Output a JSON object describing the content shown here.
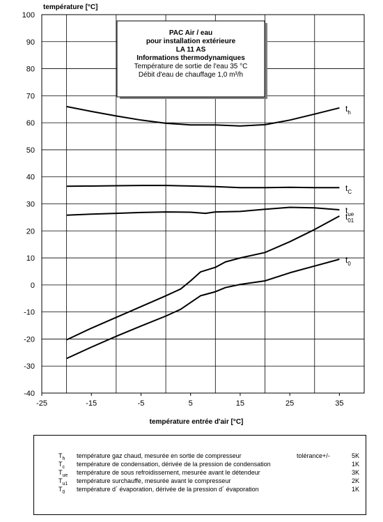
{
  "chart_data": {
    "type": "line",
    "xlabel": "température entrée d'air [°C]",
    "ylabel": "température [°C]",
    "xlim": [
      -25,
      40
    ],
    "ylim": [
      -40,
      100
    ],
    "x_ticks": [
      -25,
      -15,
      -5,
      5,
      15,
      25,
      35
    ],
    "x_tick_labels": [
      "-25",
      "-15",
      "-5",
      "5",
      "15",
      "25",
      "35"
    ],
    "y_ticks": [
      -40,
      -30,
      -20,
      -10,
      0,
      10,
      20,
      30,
      40,
      50,
      60,
      70,
      80,
      90,
      100
    ],
    "y_tick_labels": [
      "-40",
      "-30",
      "-20",
      "-10",
      "0",
      "10",
      "20",
      "30",
      "40",
      "50",
      "60",
      "70",
      "80",
      "90",
      "100"
    ],
    "vertical_gridlines_at": [
      -20,
      -10,
      0,
      10,
      20,
      30
    ],
    "horizontal_gridlines": true,
    "info_box": {
      "title": "PAC Air / eau",
      "line2": "pour installation extérieure",
      "line3": "LA 11 AS",
      "line4": "Informations thermodynamiques",
      "line5": "Température de sortie de l'eau 35 °C",
      "line6": "Débit d'eau de chauffage 1,0 m³/h"
    },
    "series": [
      {
        "name": "t",
        "sub": "h",
        "x": [
          -20,
          -15,
          -10,
          -5,
          0,
          5,
          10,
          15,
          20,
          25,
          30,
          35
        ],
        "y": [
          66,
          64.2,
          62.5,
          61,
          59.8,
          59.2,
          59.2,
          58.8,
          59.3,
          61,
          63.2,
          65.5
        ]
      },
      {
        "name": "t",
        "sub": "C",
        "x": [
          -20,
          -10,
          -5,
          0,
          5,
          10,
          15,
          20,
          25,
          30,
          35
        ],
        "y": [
          36.5,
          36.7,
          36.8,
          36.8,
          36.6,
          36.4,
          36,
          36,
          36.1,
          36,
          36
        ]
      },
      {
        "name": "t",
        "sub": "ue",
        "x": [
          -20,
          -15,
          -10,
          -5,
          0,
          5,
          8,
          10,
          15,
          20,
          25,
          30,
          35
        ],
        "y": [
          25.8,
          26.2,
          26.5,
          26.8,
          27,
          26.9,
          26.5,
          27,
          27.2,
          28,
          28.7,
          28.5,
          27.8
        ]
      },
      {
        "name": "t",
        "sub": "01",
        "x": [
          -20,
          -15,
          -10,
          -5,
          0,
          3,
          5,
          7,
          10,
          12,
          15,
          20,
          25,
          30,
          35
        ],
        "y": [
          -20.3,
          -16,
          -12,
          -8,
          -4,
          -1.5,
          1.5,
          4.8,
          6.5,
          8.5,
          10,
          12,
          16,
          20.5,
          25.5
        ]
      },
      {
        "name": "t",
        "sub": "0",
        "x": [
          -20,
          -15,
          -10,
          -5,
          0,
          3,
          5,
          7,
          10,
          12,
          15,
          20,
          25,
          30,
          35
        ],
        "y": [
          -27.2,
          -23,
          -19,
          -15.2,
          -11.5,
          -9,
          -6.5,
          -4,
          -2.5,
          -1,
          0.2,
          1.5,
          4.5,
          7,
          9.5
        ]
      }
    ]
  },
  "legend": [
    {
      "sym": "T",
      "sub": "h",
      "desc": "température gaz chaud, mesurée en sortie de compresseur",
      "tol": "tolérance+/-",
      "val": "5K"
    },
    {
      "sym": "T",
      "sub": "c",
      "desc": "température de condensation, dérivée de la pression de condensation",
      "tol": "",
      "val": "1K"
    },
    {
      "sym": "T",
      "sub": "ue",
      "desc": "température de sous refroidissement, mesurée avant le détendeur",
      "tol": "",
      "val": "3K"
    },
    {
      "sym": "T",
      "sub": "u1",
      "desc": "température surchauffe, mesurée avant le compresseur",
      "tol": "",
      "val": "2K"
    },
    {
      "sym": "T",
      "sub": "0",
      "desc": "température d´ évaporation, dérivée de la pression d´ évaporation",
      "tol": "",
      "val": "1K"
    }
  ]
}
